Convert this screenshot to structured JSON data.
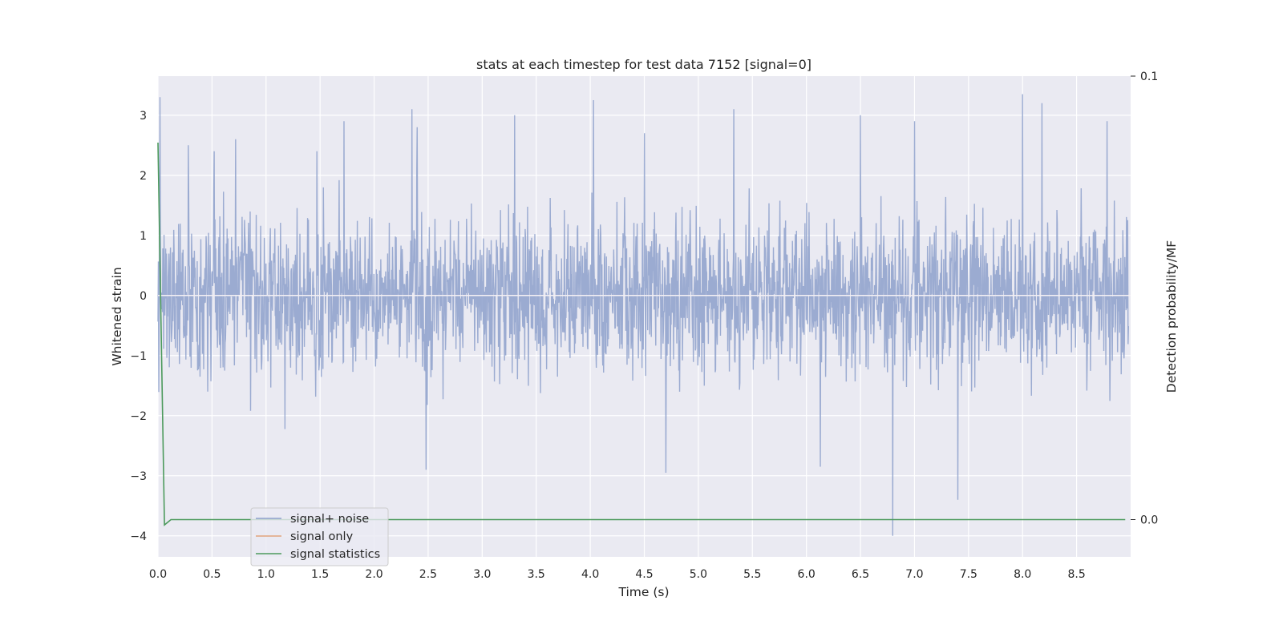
{
  "chart_data": {
    "type": "line",
    "title": "stats at each timestep for test data 7152 [signal=0]",
    "xlabel": "Time (s)",
    "ylabel": "Whitened strain",
    "y2label": "Detection probability/MF",
    "xlim": [
      0.0,
      9.0
    ],
    "ylim": [
      -4.35,
      3.65
    ],
    "y2lim": [
      -0.0084,
      0.1
    ],
    "xticks": [
      "0.0",
      "0.5",
      "1.0",
      "1.5",
      "2.0",
      "2.5",
      "3.0",
      "3.5",
      "4.0",
      "4.5",
      "5.0",
      "5.5",
      "6.0",
      "6.5",
      "7.0",
      "7.5",
      "8.0",
      "8.5"
    ],
    "yticks": [
      "3",
      "2",
      "1",
      "0",
      "−1",
      "−2",
      "−3",
      "−4"
    ],
    "y2ticks": [
      "0.1",
      "0.0"
    ],
    "grid": true,
    "legend_position": "lower-left",
    "colors": {
      "signal_plus_noise": "#8da0cb",
      "signal_only": "#e2a37c",
      "signal_statistics": "#4c9a5c",
      "background": "#eaeaf2",
      "grid": "#ffffff"
    },
    "series": [
      {
        "name": "signal+ noise",
        "axis": "left",
        "description_values": "whitened strain noise, amplitude mostly within -2.5..2.5",
        "peaks_x": [
          0.02,
          0.28,
          0.52,
          0.72,
          1.47,
          1.72,
          2.35,
          2.4,
          2.48,
          3.3,
          4.03,
          4.5,
          4.7,
          5.33,
          6.13,
          6.5,
          6.8,
          7.0,
          7.4,
          8.0,
          8.18,
          8.78
        ],
        "peaks_y": [
          3.3,
          2.5,
          2.4,
          2.6,
          2.4,
          2.9,
          3.1,
          2.8,
          -2.9,
          3.0,
          3.25,
          2.7,
          -2.95,
          3.1,
          -2.85,
          3.0,
          -4.0,
          2.9,
          -3.4,
          3.35,
          3.2,
          2.9
        ]
      },
      {
        "name": "signal only",
        "axis": "left",
        "x": [
          0.0,
          9.0
        ],
        "y": [
          0.0,
          0.0
        ]
      },
      {
        "name": "signal statistics",
        "axis": "right",
        "x": [
          0.0,
          0.06,
          0.12,
          0.5,
          1.0,
          2.0,
          3.0,
          4.0,
          5.0,
          6.0,
          7.0,
          8.0,
          8.95
        ],
        "y": [
          0.085,
          -0.0012,
          0.0,
          0.0,
          0.0,
          0.0,
          0.0,
          0.0,
          0.0,
          0.0,
          0.0,
          0.0,
          0.0
        ]
      }
    ]
  }
}
